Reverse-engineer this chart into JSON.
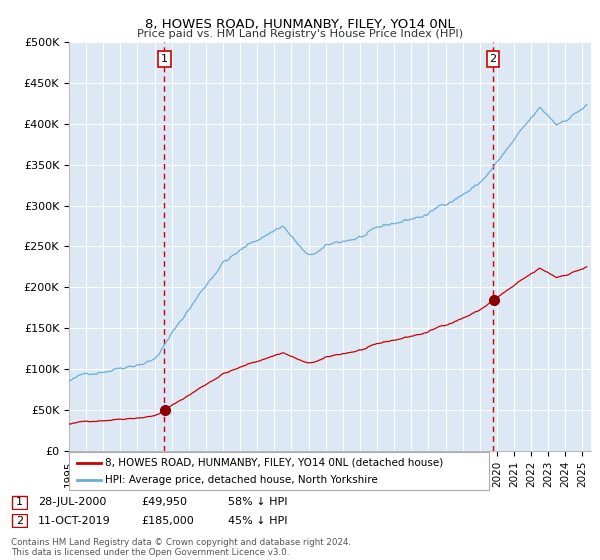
{
  "title1": "8, HOWES ROAD, HUNMANBY, FILEY, YO14 0NL",
  "title2": "Price paid vs. HM Land Registry's House Price Index (HPI)",
  "bg_color": "#dce9f5",
  "hpi_color": "#6aaed6",
  "price_color": "#cc0000",
  "marker_color": "#8b0000",
  "sale1_date": 2000.57,
  "sale1_price": 49950,
  "sale2_date": 2019.78,
  "sale2_price": 185000,
  "ylim_min": 0,
  "ylim_max": 500000,
  "xlim_min": 1995.0,
  "xlim_max": 2025.5,
  "yticks": [
    0,
    50000,
    100000,
    150000,
    200000,
    250000,
    300000,
    350000,
    400000,
    450000,
    500000
  ],
  "ytick_labels": [
    "£0",
    "£50K",
    "£100K",
    "£150K",
    "£200K",
    "£250K",
    "£300K",
    "£350K",
    "£400K",
    "£450K",
    "£500K"
  ],
  "xticks": [
    1995,
    1996,
    1997,
    1998,
    1999,
    2000,
    2001,
    2002,
    2003,
    2004,
    2005,
    2006,
    2007,
    2008,
    2009,
    2010,
    2011,
    2012,
    2013,
    2014,
    2015,
    2016,
    2017,
    2018,
    2019,
    2020,
    2021,
    2022,
    2023,
    2024,
    2025
  ],
  "legend_line1": "8, HOWES ROAD, HUNMANBY, FILEY, YO14 0NL (detached house)",
  "legend_line2": "HPI: Average price, detached house, North Yorkshire",
  "fn1_label": "1",
  "fn1_date": "28-JUL-2000",
  "fn1_price": "£49,950",
  "fn1_hpi": "58% ↓ HPI",
  "fn2_label": "2",
  "fn2_date": "11-OCT-2019",
  "fn2_price": "£185,000",
  "fn2_hpi": "45% ↓ HPI",
  "copyright": "Contains HM Land Registry data © Crown copyright and database right 2024.\nThis data is licensed under the Open Government Licence v3.0."
}
